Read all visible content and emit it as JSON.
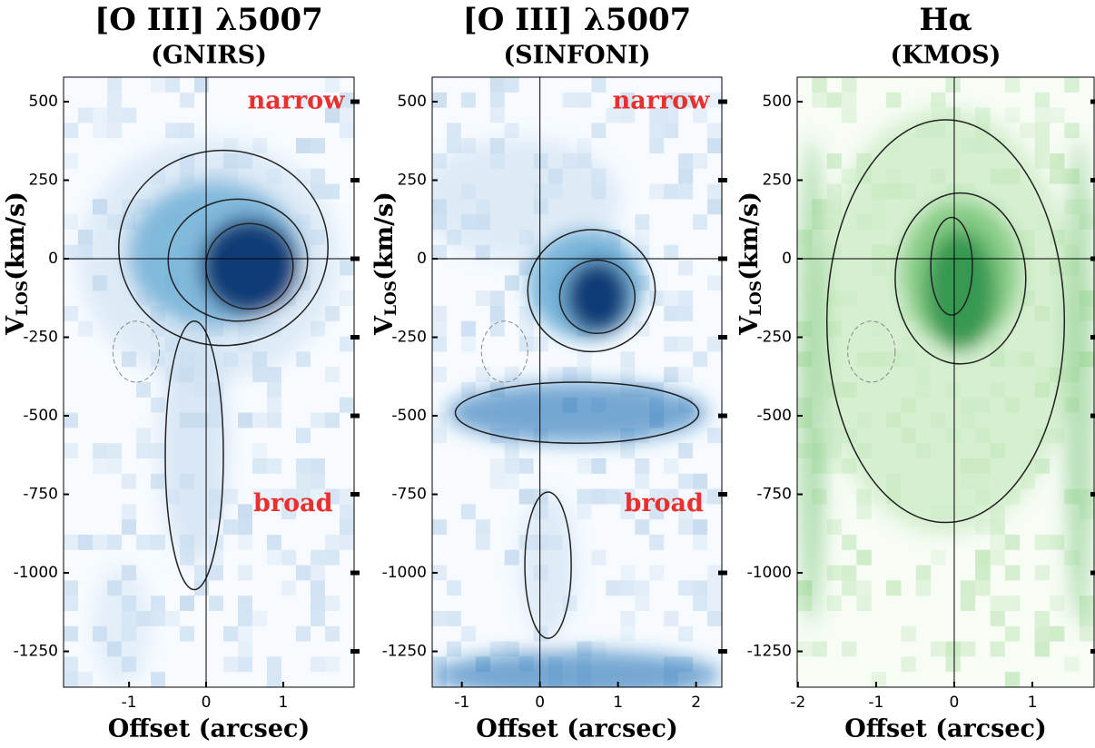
{
  "chart_data": [
    {
      "type": "heatmap",
      "title": "[O III] λ5007",
      "subtitle": "(GNIRS)",
      "xlabel": "Offset (arcsec)",
      "ylabel": {
        "main": "V",
        "sub": "LOS",
        "rest": "(km/s)"
      },
      "xlim": [
        -1.85,
        1.92
      ],
      "xticks": [
        -1,
        0,
        1
      ],
      "ylim": [
        -1364,
        578
      ],
      "yticks": [
        500,
        250,
        0,
        -250,
        -500,
        -750,
        -1000,
        -1250
      ],
      "reference_lines": {
        "x": 0,
        "y": 0
      },
      "colormap": [
        "#f7fbff",
        "#c6dbef",
        "#6baed6",
        "#2171b5",
        "#08306b"
      ],
      "annotations": [
        "narrow",
        "broad"
      ]
    },
    {
      "type": "heatmap",
      "title": "[O III] λ5007",
      "subtitle": "(SINFONI)",
      "xlabel": "Offset (arcsec)",
      "ylabel": {
        "main": "V",
        "sub": "LOS",
        "rest": "(km/s)"
      },
      "xlim": [
        -1.38,
        2.33
      ],
      "xticks": [
        -1,
        0,
        1,
        2
      ],
      "ylim": [
        -1364,
        578
      ],
      "yticks": [
        500,
        250,
        0,
        -250,
        -500,
        -750,
        -1000,
        -1250
      ],
      "reference_lines": {
        "x": 0,
        "y": 0
      },
      "colormap": [
        "#f7fbff",
        "#c6dbef",
        "#6baed6",
        "#2171b5",
        "#08306b"
      ],
      "annotations": [
        "narrow",
        "broad"
      ]
    },
    {
      "type": "heatmap",
      "title": "Hα",
      "subtitle": "(KMOS)",
      "xlabel": "Offset (arcsec)",
      "ylabel": {
        "main": "V",
        "sub": "LOS",
        "rest": "(km/s)"
      },
      "xlim": [
        -2.01,
        1.79
      ],
      "xticks": [
        -2,
        -1,
        0,
        1
      ],
      "ylim": [
        -1364,
        578
      ],
      "yticks": [
        500,
        250,
        0,
        -250,
        -500,
        -750,
        -1000,
        -1250
      ],
      "reference_lines": {
        "x": 0,
        "y": 0
      },
      "colormap": [
        "#f7fcf5",
        "#c7e9c0",
        "#74c476",
        "#238b45",
        "#00441b"
      ],
      "annotations": []
    }
  ]
}
